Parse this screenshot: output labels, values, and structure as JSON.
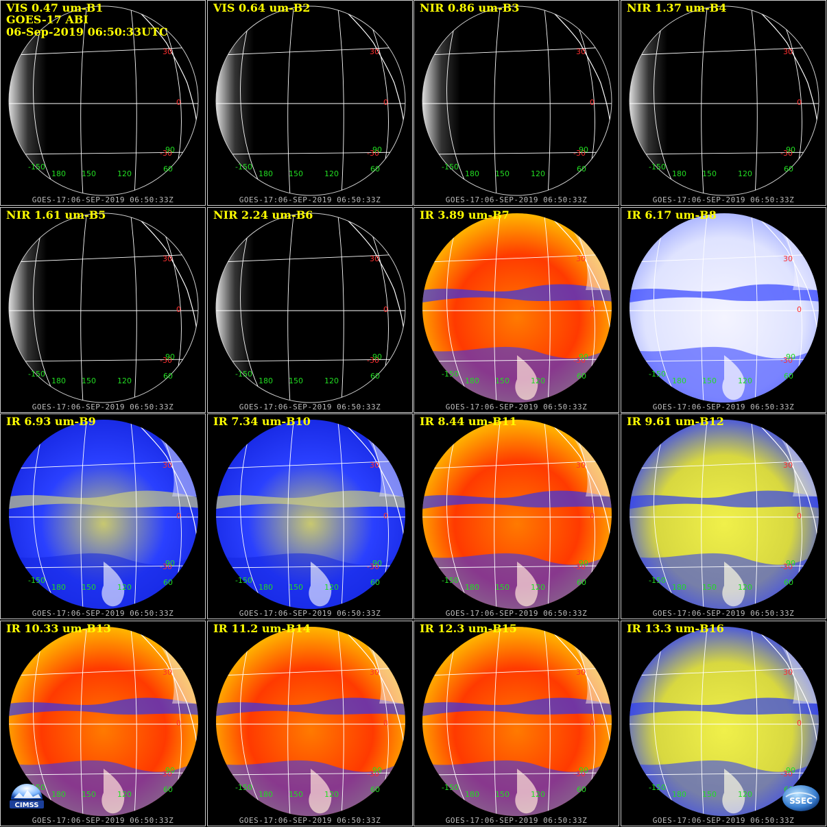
{
  "header": {
    "satellite": "GOES-17 ABI",
    "datetime": "06-Sep-2019 06:50:33UTC"
  },
  "panels": [
    {
      "title": "VIS 0.47 um-B1",
      "scheme": "vis"
    },
    {
      "title": "VIS 0.64 um-B2",
      "scheme": "vis"
    },
    {
      "title": "NIR 0.86 um-B3",
      "scheme": "vis"
    },
    {
      "title": "NIR 1.37 um-B4",
      "scheme": "vis"
    },
    {
      "title": "NIR 1.61 um-B5",
      "scheme": "vis"
    },
    {
      "title": "NIR 2.24 um-B6",
      "scheme": "vis"
    },
    {
      "title": "IR 3.89 um-B7",
      "scheme": "ir-warm"
    },
    {
      "title": "IR 6.17 um-B8",
      "scheme": "wv-white"
    },
    {
      "title": "IR 6.93 um-B9",
      "scheme": "wv-blue"
    },
    {
      "title": "IR 7.34 um-B10",
      "scheme": "wv-blue"
    },
    {
      "title": "IR 8.44 um-B11",
      "scheme": "ir-warm"
    },
    {
      "title": "IR 9.61 um-B12",
      "scheme": "ir-yellow"
    },
    {
      "title": "IR 10.33 um-B13",
      "scheme": "ir-warm"
    },
    {
      "title": "IR 11.2 um-B14",
      "scheme": "ir-warm"
    },
    {
      "title": "IR 12.3 um-B15",
      "scheme": "ir-warm"
    },
    {
      "title": "IR 13.3 um-B16",
      "scheme": "ir-yellow"
    }
  ],
  "footer_text": "GOES-17:06-SEP-2019 06:50:33Z",
  "grid_labels": {
    "latitudes": [
      "30",
      "0",
      "-30",
      "-30"
    ],
    "longitudes": [
      "-150",
      "180",
      "150",
      "120",
      "90",
      "60"
    ]
  },
  "logos": {
    "left": "CIMSS",
    "right": "SSEC"
  },
  "colors": {
    "title": "#ffff00",
    "latitude_label": "#ff3030",
    "longitude_label": "#22dd22",
    "grid_lines": "#ffffff",
    "ir_warm": "#ff3a00",
    "ir_mid": "#ffe600",
    "ir_cold": "#1a2cff",
    "wv_dark": "#1530ff",
    "wv_light": "#f2f2ff"
  }
}
